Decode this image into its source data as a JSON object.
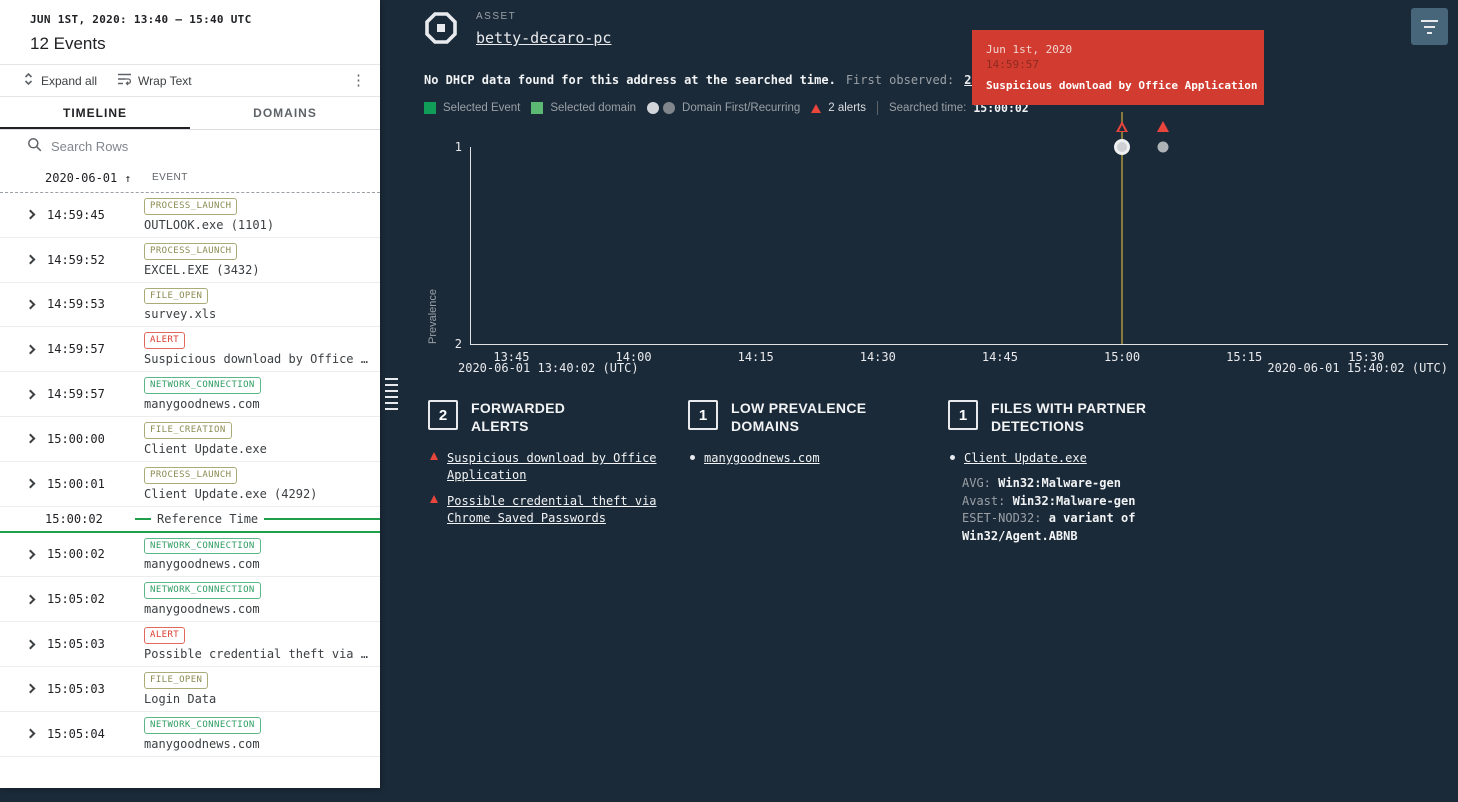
{
  "left_panel": {
    "header": {
      "date_range": "JUN 1ST, 2020: 13:40 – 15:40 UTC",
      "events_count": "12 Events"
    },
    "toolbar": {
      "expand_all": "Expand all",
      "wrap_text": "Wrap Text"
    },
    "tabs": [
      {
        "label": "TIMELINE"
      },
      {
        "label": "DOMAINS"
      }
    ],
    "search": {
      "placeholder": "Search Rows"
    },
    "columns": {
      "date": "2020-06-01",
      "event": "EVENT"
    },
    "rows": [
      {
        "time": "14:59:45",
        "badge": "PROCESS_LAUNCH",
        "kind": "process",
        "text": "OUTLOOK.exe (1101)"
      },
      {
        "time": "14:59:52",
        "badge": "PROCESS_LAUNCH",
        "kind": "process",
        "text": "EXCEL.EXE (3432)"
      },
      {
        "time": "14:59:53",
        "badge": "FILE_OPEN",
        "kind": "file",
        "text": "survey.xls"
      },
      {
        "time": "14:59:57",
        "badge": "ALERT",
        "kind": "alert",
        "text": "Suspicious download by Office …"
      },
      {
        "time": "14:59:57",
        "badge": "NETWORK_CONNECTION",
        "kind": "network",
        "text": "manygoodnews.com"
      },
      {
        "time": "15:00:00",
        "badge": "FILE_CREATION",
        "kind": "file",
        "text": "Client Update.exe"
      },
      {
        "time": "15:00:01",
        "badge": "PROCESS_LAUNCH",
        "kind": "process",
        "text": "Client Update.exe (4292)"
      },
      {
        "reference": true,
        "time": "15:00:02",
        "label": "Reference Time"
      },
      {
        "time": "15:00:02",
        "badge": "NETWORK_CONNECTION",
        "kind": "network",
        "text": "manygoodnews.com"
      },
      {
        "time": "15:05:02",
        "badge": "NETWORK_CONNECTION",
        "kind": "network",
        "text": "manygoodnews.com"
      },
      {
        "time": "15:05:03",
        "badge": "ALERT",
        "kind": "alert",
        "text": "Possible credential theft via …"
      },
      {
        "time": "15:05:03",
        "badge": "FILE_OPEN",
        "kind": "file",
        "text": "Login Data"
      },
      {
        "time": "15:05:04",
        "badge": "NETWORK_CONNECTION",
        "kind": "network",
        "text": "manygoodnews.com"
      }
    ]
  },
  "main": {
    "asset": {
      "label": "ASSET",
      "name": "betty-decaro-pc"
    },
    "notice": "No DHCP data found for this address at the searched time.",
    "first_observed": {
      "label": "First observed:",
      "value": "2020-02-21T18"
    },
    "legend": {
      "selected_event": "Selected Event",
      "selected_domain": "Selected domain",
      "domain_first_recurring": "Domain First/Recurring",
      "alerts": "2 alerts",
      "searched_time_label": "Searched time:",
      "searched_time_value": "15:00:02"
    },
    "tooltip": {
      "date": "Jun 1st, 2020",
      "time": "14:59:57",
      "text": "Suspicious download by Office Application"
    },
    "cards": [
      {
        "count": "2",
        "title": "FORWARDED ALERTS",
        "bullet": "alert-triangle",
        "items": [
          "Suspicious download by Office Application",
          "Possible credential theft via Chrome Saved Passwords"
        ]
      },
      {
        "count": "1",
        "title": "LOW PREVALENCE DOMAINS",
        "bullet": "dot",
        "items": [
          "manygoodnews.com"
        ]
      },
      {
        "count": "1",
        "title": "FILES WITH PARTNER DETECTIONS",
        "bullet": "dot",
        "items": [
          "Client Update.exe"
        ],
        "detections": [
          {
            "label": "AVG:",
            "value": "Win32:Malware-gen"
          },
          {
            "label": "Avast:",
            "value": "Win32:Malware-gen"
          },
          {
            "label": "ESET-NOD32:",
            "value": "a variant of Win32/Agent.ABNB"
          }
        ]
      }
    ]
  },
  "chart_data": {
    "type": "scatter",
    "title": "",
    "ylabel": "Prevalence",
    "y_ticks": [
      "1",
      "2"
    ],
    "y_inverted": true,
    "x_ticks": [
      "13:45",
      "14:00",
      "14:15",
      "14:30",
      "14:45",
      "15:00",
      "15:15",
      "15:30"
    ],
    "x_start": "13:40:02",
    "x_end": "15:40:02",
    "x_range_start": "2020-06-01 13:40:02 (UTC)",
    "x_range_end": "2020-06-01 15:40:02 (UTC)",
    "points": [
      {
        "time": "15:00:02",
        "prevalence": 1,
        "selected": true,
        "alert": true
      },
      {
        "time": "15:05:04",
        "prevalence": 1,
        "selected": false,
        "alert": true
      }
    ]
  },
  "colors": {
    "background": "#1b2a39",
    "accent_green": "#1f9e4c",
    "alert_red": "#d93a2d",
    "tooltip_red": "#d23b2f",
    "searched_line_olive": "#86793c"
  }
}
